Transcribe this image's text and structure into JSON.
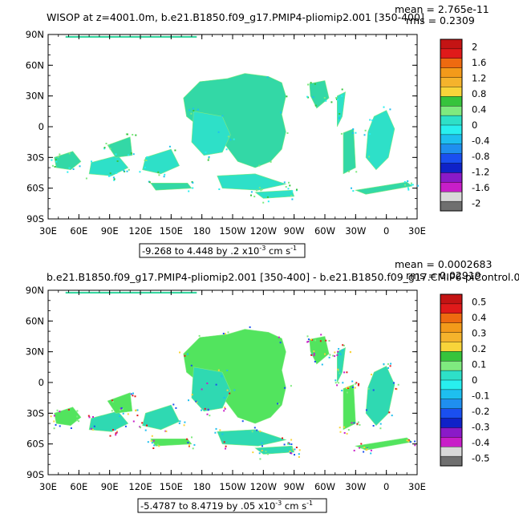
{
  "chart_data": [
    {
      "type": "heatmap",
      "title": "WISOP at z=4001.0m, b.e21.B1850.f09_g17.PMIP4-pliomip2.001 [350-400]",
      "stats": {
        "mean": "mean = 2.765e-11",
        "rms": "rms = 0.2309"
      },
      "x_ticks": [
        "30E",
        "60E",
        "90E",
        "120E",
        "150E",
        "180",
        "150W",
        "120W",
        "90W",
        "60W",
        "30W",
        "0",
        "30E"
      ],
      "y_ticks": [
        "90N",
        "60N",
        "30N",
        "0",
        "30S",
        "60S",
        "90S"
      ],
      "range_label": "-9.268 to 4.448 by .2 x10",
      "range_exp": "-3",
      "range_units": " cm s",
      "range_units_exp": "-1",
      "xlim_lon_east": [
        30,
        390
      ],
      "ylim_lat": [
        -90,
        90
      ],
      "colorbar": {
        "labels": [
          "2",
          "1.6",
          "1.2",
          "0.8",
          "0.4",
          "0",
          "-0.4",
          "-0.8",
          "-1.2",
          "-1.6",
          "-2"
        ],
        "colors": [
          "#c41414",
          "#e01a1a",
          "#ee6a10",
          "#f39a1a",
          "#f5b32c",
          "#f8d43a",
          "#36c43c",
          "#7fea7f",
          "#2ee0c8",
          "#28efef",
          "#1ebfef",
          "#1f8fef",
          "#1a4ff0",
          "#0f22c8",
          "#8a1ac8",
          "#c81ec8",
          "#d8d8d8",
          "#6f6f6f"
        ]
      }
    },
    {
      "type": "heatmap",
      "title": "b.e21.B1850.f09_g17.PMIP4-pliomip2.001 [350-400] - b.e21.B1850.f09_g17.CMIP6-piControl.001",
      "stats": {
        "mean": "mean = 0.0002683",
        "rms": "rms = 0.02919"
      },
      "x_ticks": [
        "30E",
        "60E",
        "90E",
        "120E",
        "150E",
        "180",
        "150W",
        "120W",
        "90W",
        "60W",
        "30W",
        "0",
        "30E"
      ],
      "y_ticks": [
        "90N",
        "60N",
        "30N",
        "0",
        "30S",
        "60S",
        "90S"
      ],
      "range_label": "-5.4787 to 8.4719 by .05 x10",
      "range_exp": "-3",
      "range_units": " cm s",
      "range_units_exp": "-1",
      "xlim_lon_east": [
        30,
        390
      ],
      "ylim_lat": [
        -90,
        90
      ],
      "colorbar": {
        "labels": [
          "0.5",
          "0.4",
          "0.3",
          "0.2",
          "0.1",
          "0",
          "-0.1",
          "-0.2",
          "-0.3",
          "-0.4",
          "-0.5"
        ],
        "colors": [
          "#c41414",
          "#e01a1a",
          "#ee6a10",
          "#f39a1a",
          "#f5b32c",
          "#f8d43a",
          "#36c43c",
          "#7fea7f",
          "#2ee0c8",
          "#28efef",
          "#1ebfef",
          "#1f8fef",
          "#1a4ff0",
          "#0f22c8",
          "#8a1ac8",
          "#c81ec8",
          "#d8d8d8",
          "#6f6f6f"
        ]
      }
    }
  ]
}
